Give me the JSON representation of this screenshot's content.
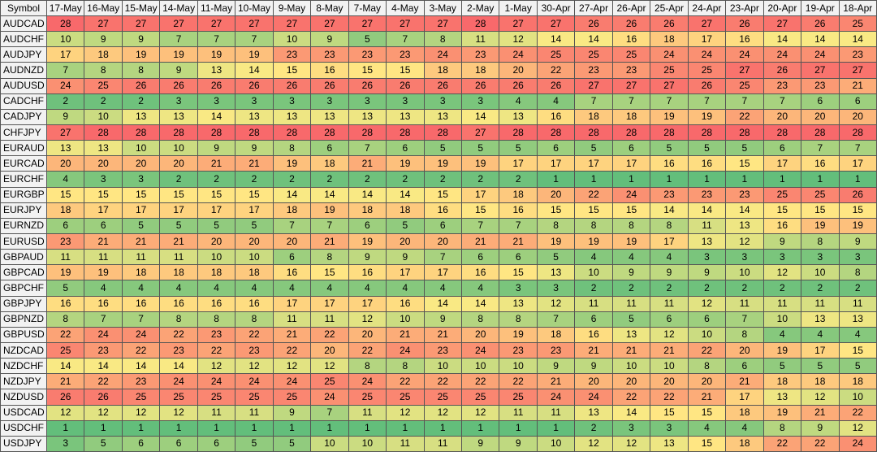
{
  "table": {
    "header": [
      "Symbol",
      "17-May",
      "16-May",
      "15-May",
      "14-May",
      "11-May",
      "10-May",
      "9-May",
      "8-May",
      "7-May",
      "4-May",
      "3-May",
      "2-May",
      "1-May",
      "30-Apr",
      "27-Apr",
      "26-Apr",
      "25-Apr",
      "24-Apr",
      "23-Apr",
      "20-Apr",
      "19-Apr",
      "18-Apr"
    ],
    "rows": [
      [
        "AUDCAD",
        28,
        27,
        27,
        27,
        27,
        27,
        27,
        27,
        27,
        27,
        27,
        28,
        27,
        27,
        26,
        26,
        26,
        27,
        26,
        27,
        26,
        25
      ],
      [
        "AUDCHF",
        10,
        9,
        9,
        7,
        7,
        7,
        10,
        9,
        5,
        7,
        8,
        11,
        12,
        14,
        14,
        16,
        18,
        17,
        16,
        14,
        14,
        14
      ],
      [
        "AUDJPY",
        17,
        18,
        19,
        19,
        19,
        19,
        23,
        23,
        23,
        23,
        24,
        23,
        24,
        25,
        25,
        25,
        24,
        24,
        24,
        24,
        24,
        23
      ],
      [
        "AUDNZD",
        7,
        8,
        8,
        9,
        13,
        14,
        15,
        16,
        15,
        15,
        18,
        18,
        20,
        22,
        23,
        23,
        25,
        25,
        27,
        26,
        27,
        27
      ],
      [
        "AUDUSD",
        24,
        25,
        26,
        26,
        26,
        26,
        26,
        26,
        26,
        26,
        26,
        26,
        26,
        26,
        27,
        27,
        27,
        26,
        25,
        23,
        23,
        21
      ],
      [
        "CADCHF",
        2,
        2,
        2,
        3,
        3,
        3,
        3,
        3,
        3,
        3,
        3,
        3,
        4,
        4,
        7,
        7,
        7,
        7,
        7,
        7,
        6,
        6
      ],
      [
        "CADJPY",
        9,
        10,
        13,
        13,
        14,
        13,
        13,
        13,
        13,
        13,
        13,
        14,
        13,
        16,
        18,
        18,
        19,
        19,
        22,
        20,
        20,
        20
      ],
      [
        "CHFJPY",
        27,
        28,
        28,
        28,
        28,
        28,
        28,
        28,
        28,
        28,
        28,
        27,
        28,
        28,
        28,
        28,
        28,
        28,
        28,
        28,
        28,
        28
      ],
      [
        "EURAUD",
        13,
        13,
        10,
        10,
        9,
        9,
        8,
        6,
        7,
        6,
        5,
        5,
        5,
        6,
        5,
        6,
        5,
        5,
        5,
        6,
        7,
        7
      ],
      [
        "EURCAD",
        20,
        20,
        20,
        20,
        21,
        21,
        19,
        18,
        21,
        19,
        19,
        19,
        17,
        17,
        17,
        17,
        16,
        16,
        15,
        17,
        16,
        17
      ],
      [
        "EURCHF",
        4,
        3,
        3,
        2,
        2,
        2,
        2,
        2,
        2,
        2,
        2,
        2,
        2,
        1,
        1,
        1,
        1,
        1,
        1,
        1,
        1,
        1
      ],
      [
        "EURGBP",
        15,
        15,
        15,
        15,
        15,
        15,
        14,
        14,
        14,
        14,
        15,
        17,
        18,
        20,
        22,
        24,
        23,
        23,
        23,
        25,
        25,
        26
      ],
      [
        "EURJPY",
        18,
        17,
        17,
        17,
        17,
        17,
        18,
        19,
        18,
        18,
        16,
        15,
        16,
        15,
        15,
        15,
        14,
        14,
        14,
        15,
        15,
        15
      ],
      [
        "EURNZD",
        6,
        6,
        5,
        5,
        5,
        5,
        7,
        7,
        6,
        5,
        6,
        7,
        7,
        8,
        8,
        8,
        8,
        11,
        13,
        16,
        19,
        19
      ],
      [
        "EURUSD",
        23,
        21,
        21,
        21,
        20,
        20,
        20,
        21,
        19,
        20,
        20,
        21,
        21,
        19,
        19,
        19,
        17,
        13,
        12,
        9,
        8,
        9
      ],
      [
        "GBPAUD",
        11,
        11,
        11,
        11,
        10,
        10,
        6,
        8,
        9,
        9,
        7,
        6,
        6,
        5,
        4,
        4,
        4,
        3,
        3,
        3,
        3,
        3
      ],
      [
        "GBPCAD",
        19,
        19,
        18,
        18,
        18,
        18,
        16,
        15,
        16,
        17,
        17,
        16,
        15,
        13,
        10,
        9,
        9,
        9,
        10,
        12,
        10,
        8
      ],
      [
        "GBPCHF",
        5,
        4,
        4,
        4,
        4,
        4,
        4,
        4,
        4,
        4,
        4,
        4,
        3,
        3,
        2,
        2,
        2,
        2,
        2,
        2,
        2,
        2
      ],
      [
        "GBPJPY",
        16,
        16,
        16,
        16,
        16,
        16,
        17,
        17,
        17,
        16,
        14,
        14,
        13,
        12,
        11,
        11,
        11,
        12,
        11,
        11,
        11,
        11
      ],
      [
        "GBPNZD",
        8,
        7,
        7,
        8,
        8,
        8,
        11,
        11,
        12,
        10,
        9,
        8,
        8,
        7,
        6,
        5,
        6,
        6,
        7,
        10,
        13,
        13
      ],
      [
        "GBPUSD",
        22,
        24,
        24,
        22,
        23,
        22,
        21,
        22,
        20,
        21,
        21,
        20,
        19,
        18,
        16,
        13,
        12,
        10,
        8,
        4,
        4,
        4
      ],
      [
        "NZDCAD",
        25,
        23,
        22,
        23,
        22,
        23,
        22,
        20,
        22,
        24,
        23,
        24,
        23,
        23,
        21,
        21,
        21,
        22,
        20,
        19,
        17,
        15
      ],
      [
        "NZDCHF",
        14,
        14,
        14,
        14,
        12,
        12,
        12,
        12,
        8,
        8,
        10,
        10,
        10,
        9,
        9,
        10,
        10,
        8,
        6,
        5,
        5,
        5
      ],
      [
        "NZDJPY",
        21,
        22,
        23,
        24,
        24,
        24,
        24,
        25,
        24,
        22,
        22,
        22,
        22,
        21,
        20,
        20,
        20,
        20,
        21,
        18,
        18,
        18
      ],
      [
        "NZDUSD",
        26,
        26,
        25,
        25,
        25,
        25,
        25,
        24,
        25,
        25,
        25,
        25,
        25,
        24,
        24,
        22,
        22,
        21,
        17,
        13,
        12,
        10
      ],
      [
        "USDCAD",
        12,
        12,
        12,
        12,
        11,
        11,
        9,
        7,
        11,
        12,
        12,
        12,
        11,
        11,
        13,
        14,
        15,
        15,
        18,
        19,
        21,
        22
      ],
      [
        "USDCHF",
        1,
        1,
        1,
        1,
        1,
        1,
        1,
        1,
        1,
        1,
        1,
        1,
        1,
        1,
        2,
        3,
        3,
        4,
        4,
        8,
        9,
        12
      ],
      [
        "USDJPY",
        3,
        5,
        6,
        6,
        6,
        5,
        5,
        10,
        10,
        11,
        11,
        9,
        9,
        10,
        12,
        12,
        13,
        15,
        18,
        22,
        22,
        24
      ]
    ]
  }
}
